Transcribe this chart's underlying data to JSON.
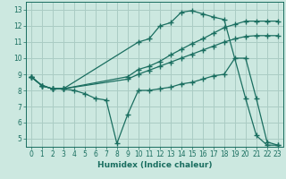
{
  "background_color": "#cce8e0",
  "grid_color": "#aaccC4",
  "line_color": "#1a6e60",
  "xlabel": "Humidex (Indice chaleur)",
  "xlim": [
    -0.5,
    23.5
  ],
  "ylim": [
    4.5,
    13.5
  ],
  "xticks": [
    0,
    1,
    2,
    3,
    4,
    5,
    6,
    7,
    8,
    9,
    10,
    11,
    12,
    13,
    14,
    15,
    16,
    17,
    18,
    19,
    20,
    21,
    22,
    23
  ],
  "yticks": [
    5,
    6,
    7,
    8,
    9,
    10,
    11,
    12,
    13
  ],
  "lines": [
    {
      "x": [
        0,
        1,
        2,
        3,
        10,
        11,
        12,
        13,
        14,
        15,
        16,
        17,
        18,
        20,
        21,
        22,
        23
      ],
      "y": [
        8.85,
        8.3,
        8.1,
        8.1,
        11.0,
        11.2,
        12.0,
        12.2,
        12.85,
        12.95,
        12.75,
        12.55,
        12.4,
        7.5,
        5.2,
        4.6,
        4.6
      ]
    },
    {
      "x": [
        0,
        1,
        2,
        3,
        9,
        10,
        11,
        12,
        13,
        14,
        15,
        16,
        17,
        18,
        19,
        20,
        21,
        22,
        23
      ],
      "y": [
        8.85,
        8.3,
        8.1,
        8.1,
        8.85,
        9.3,
        9.5,
        9.8,
        10.2,
        10.55,
        10.9,
        11.2,
        11.55,
        11.9,
        12.1,
        12.3,
        12.3,
        12.3,
        12.3
      ]
    },
    {
      "x": [
        0,
        1,
        2,
        3,
        9,
        10,
        11,
        12,
        13,
        14,
        15,
        16,
        17,
        18,
        19,
        20,
        21,
        22,
        23
      ],
      "y": [
        8.85,
        8.3,
        8.1,
        8.1,
        8.7,
        9.0,
        9.25,
        9.5,
        9.75,
        10.0,
        10.25,
        10.5,
        10.75,
        11.0,
        11.2,
        11.35,
        11.4,
        11.4,
        11.4
      ]
    },
    {
      "x": [
        0,
        1,
        2,
        3,
        4,
        5,
        6,
        7,
        8,
        9,
        10,
        11,
        12,
        13,
        14,
        15,
        16,
        17,
        18,
        19,
        20,
        21,
        22,
        23
      ],
      "y": [
        8.85,
        8.3,
        8.1,
        8.1,
        8.0,
        7.8,
        7.5,
        7.4,
        4.7,
        6.5,
        8.0,
        8.0,
        8.1,
        8.2,
        8.4,
        8.5,
        8.7,
        8.9,
        9.0,
        10.0,
        10.0,
        7.5,
        4.8,
        4.6
      ]
    }
  ]
}
